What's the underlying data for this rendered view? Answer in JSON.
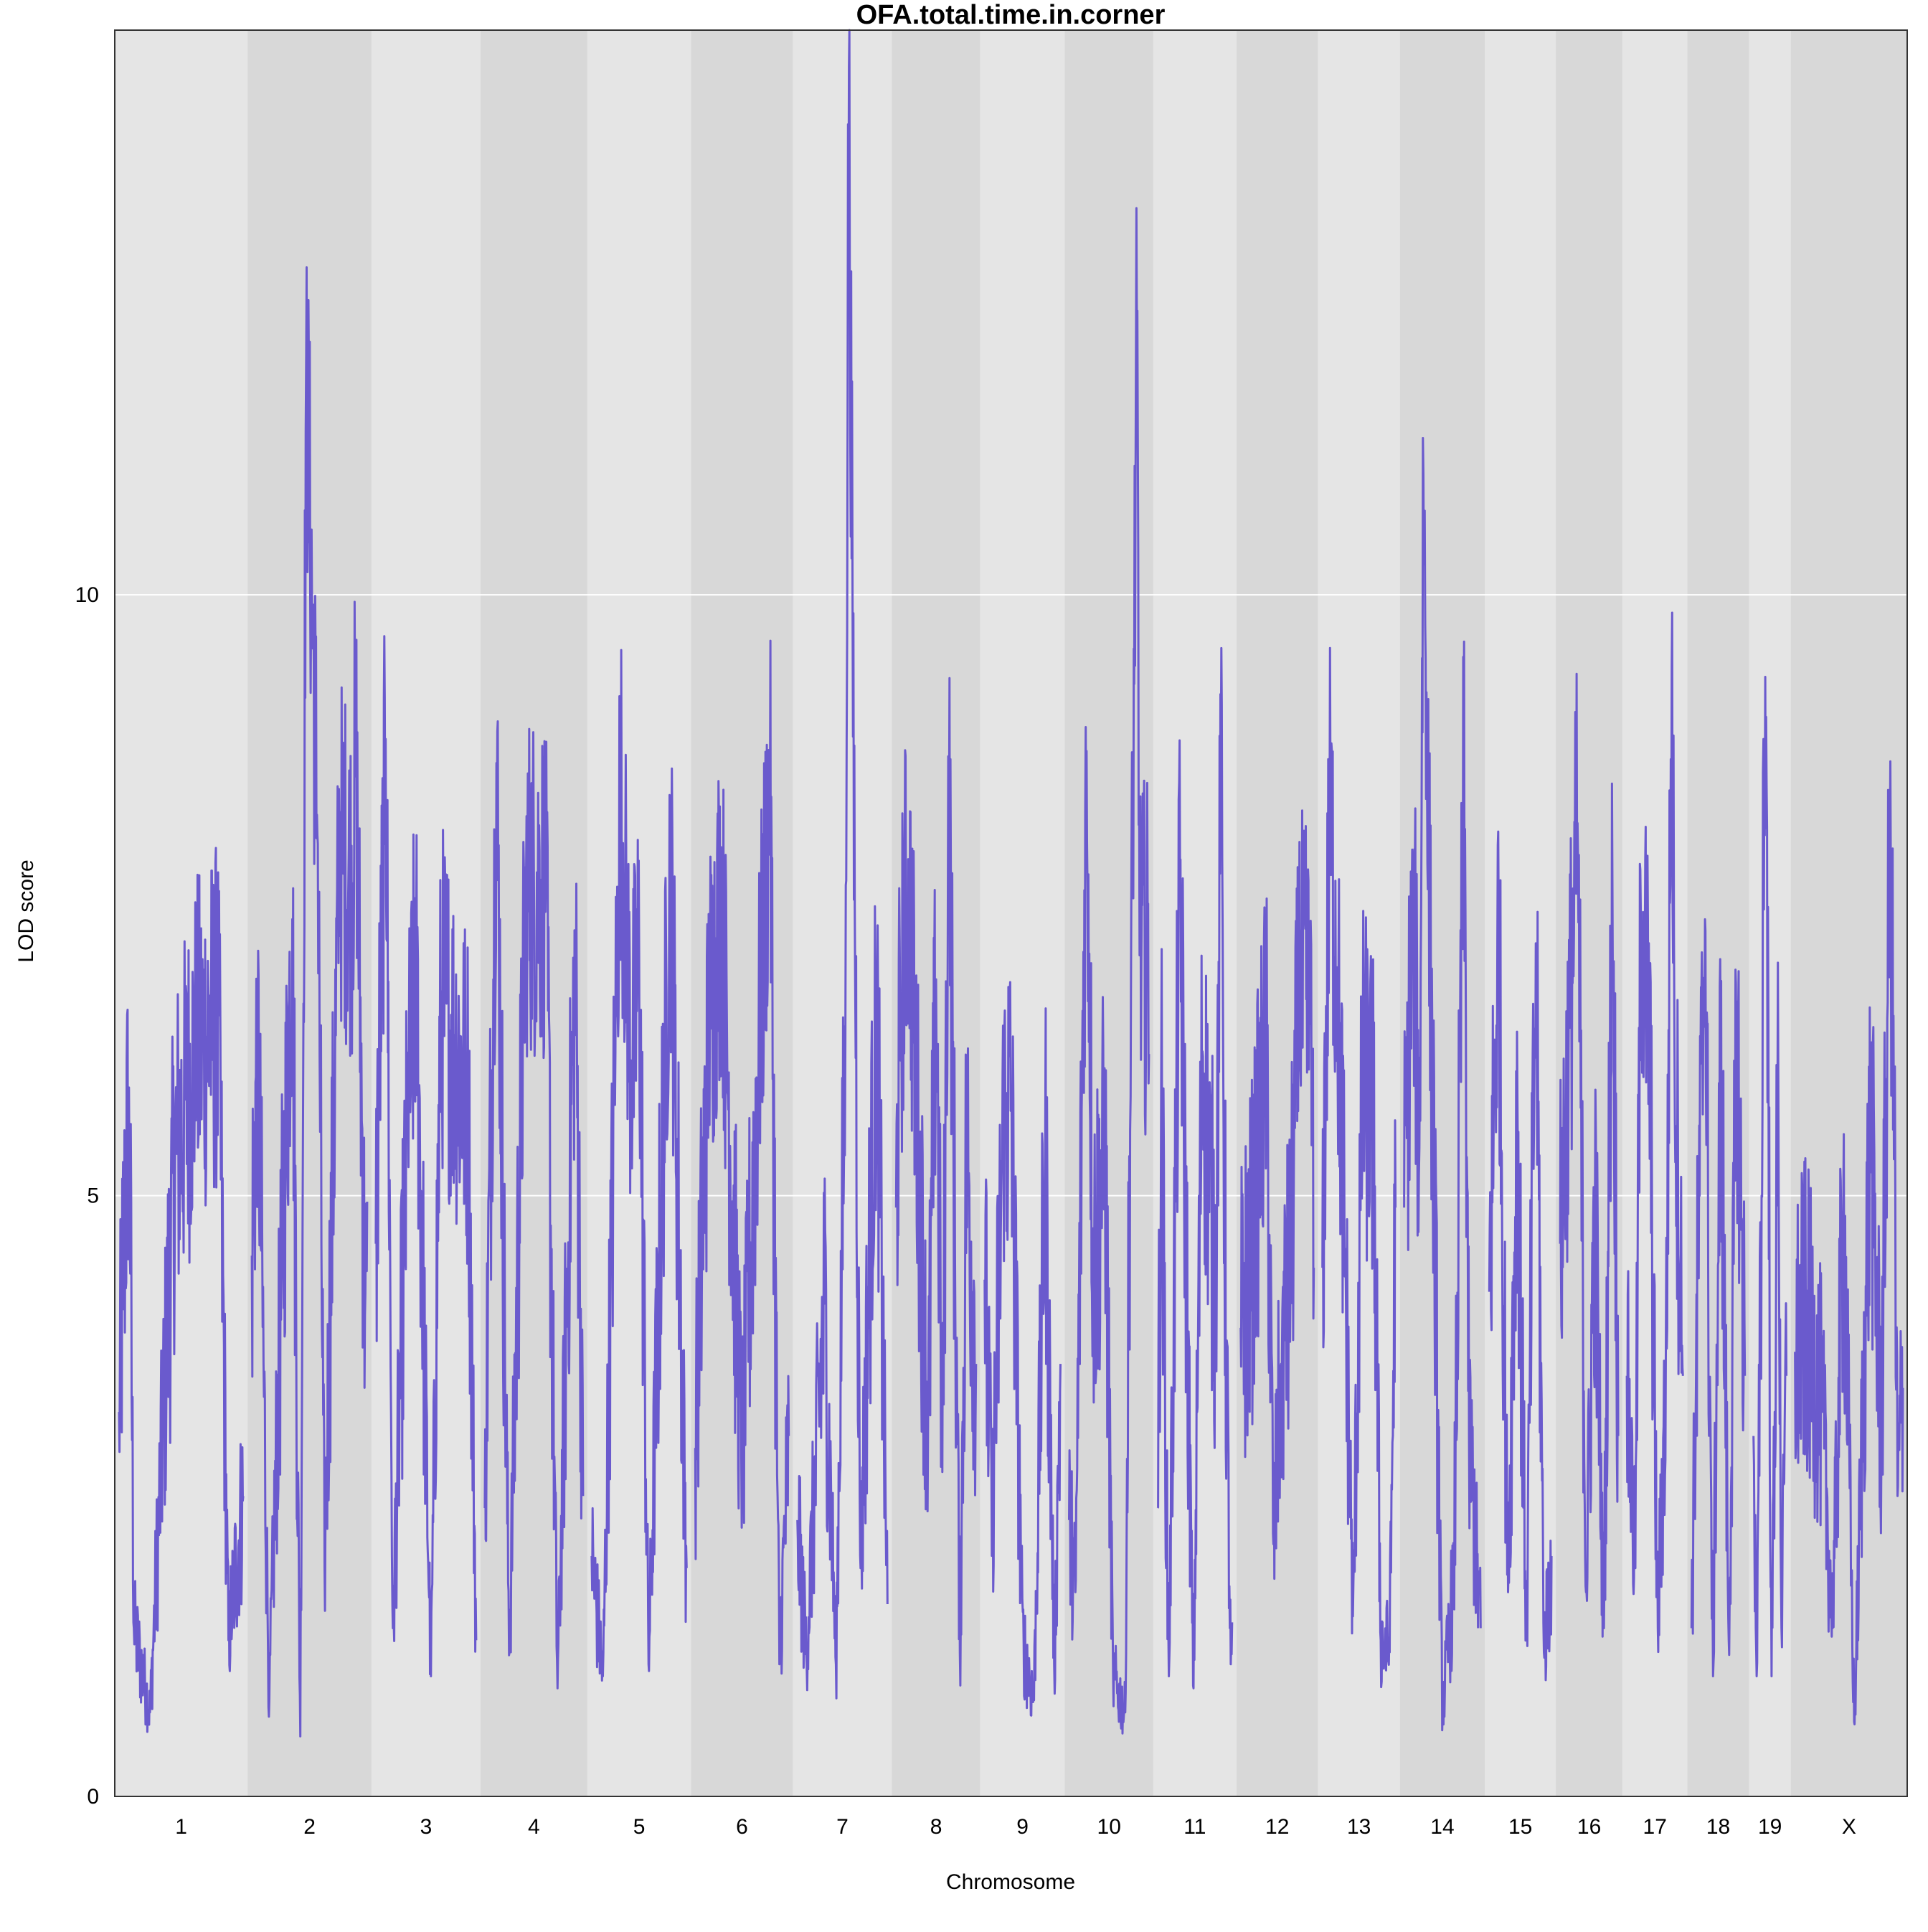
{
  "chart_data": {
    "type": "line",
    "title": "OFA.total.time.in.corner",
    "xlabel": "Chromosome",
    "ylabel": "LOD score",
    "ylim": [
      0,
      14.7
    ],
    "yticks": [
      0,
      5,
      10
    ],
    "grid": true,
    "colors": {
      "line": "#6a5acd",
      "band_light": "#e5e5e5",
      "band_dark": "#d8d8d8",
      "gridline": "#ffffff"
    },
    "chromosomes": [
      {
        "label": "1",
        "length": 195,
        "peaks": [
          [
            0.0,
            3.2
          ],
          [
            0.08,
            5.9
          ],
          [
            0.12,
            1.4
          ],
          [
            0.25,
            0.7
          ],
          [
            0.45,
            5.3
          ],
          [
            0.62,
            6.2
          ],
          [
            0.8,
            6.5
          ],
          [
            0.88,
            1.3
          ],
          [
            1.0,
            2.5
          ]
        ]
      },
      {
        "label": "2",
        "length": 182,
        "peaks": [
          [
            0.0,
            4.5
          ],
          [
            0.05,
            6.4
          ],
          [
            0.15,
            0.8
          ],
          [
            0.35,
            7.3
          ],
          [
            0.42,
            0.5
          ],
          [
            0.47,
            12.0
          ],
          [
            0.57,
            8.0
          ],
          [
            0.63,
            1.9
          ],
          [
            0.76,
            7.9
          ],
          [
            0.87,
            7.6
          ],
          [
            0.9,
            8.9
          ],
          [
            0.98,
            4.0
          ]
        ]
      },
      {
        "label": "3",
        "length": 160,
        "peaks": [
          [
            0.0,
            4.6
          ],
          [
            0.1,
            8.8
          ],
          [
            0.17,
            1.4
          ],
          [
            0.32,
            5.6
          ],
          [
            0.4,
            7.0
          ],
          [
            0.55,
            1.0
          ],
          [
            0.65,
            6.7
          ],
          [
            0.92,
            5.8
          ],
          [
            1.0,
            1.3
          ]
        ]
      },
      {
        "label": "4",
        "length": 157,
        "peaks": [
          [
            0.0,
            2.4
          ],
          [
            0.12,
            8.6
          ],
          [
            0.25,
            1.2
          ],
          [
            0.42,
            7.6
          ],
          [
            0.62,
            7.6
          ],
          [
            0.74,
            0.9
          ],
          [
            0.92,
            7.0
          ],
          [
            1.0,
            2.5
          ]
        ]
      },
      {
        "label": "5",
        "length": 152,
        "peaks": [
          [
            0.0,
            2.0
          ],
          [
            0.12,
            1.0
          ],
          [
            0.25,
            6.2
          ],
          [
            0.3,
            8.5
          ],
          [
            0.42,
            6.0
          ],
          [
            0.5,
            7.0
          ],
          [
            0.6,
            1.1
          ],
          [
            0.83,
            7.8
          ],
          [
            1.0,
            1.9
          ]
        ]
      },
      {
        "label": "6",
        "length": 150,
        "peaks": [
          [
            0.0,
            2.9
          ],
          [
            0.15,
            6.5
          ],
          [
            0.28,
            7.5
          ],
          [
            0.5,
            2.8
          ],
          [
            0.7,
            6.6
          ],
          [
            0.8,
            8.4
          ],
          [
            0.9,
            1.1
          ],
          [
            1.0,
            3.0
          ]
        ]
      },
      {
        "label": "7",
        "length": 145,
        "peaks": [
          [
            0.0,
            2.3
          ],
          [
            0.1,
            1.2
          ],
          [
            0.3,
            4.1
          ],
          [
            0.43,
            1.1
          ],
          [
            0.53,
            6.3
          ],
          [
            0.57,
            14.4
          ],
          [
            0.61,
            10.0
          ],
          [
            0.7,
            1.9
          ],
          [
            0.88,
            6.5
          ],
          [
            1.0,
            1.6
          ]
        ]
      },
      {
        "label": "8",
        "length": 130,
        "peaks": [
          [
            0.0,
            4.9
          ],
          [
            0.05,
            6.5
          ],
          [
            0.15,
            7.8
          ],
          [
            0.4,
            3.0
          ],
          [
            0.5,
            6.8
          ],
          [
            0.58,
            2.7
          ],
          [
            0.66,
            8.6
          ],
          [
            0.8,
            1.2
          ],
          [
            0.88,
            5.5
          ],
          [
            1.0,
            3.6
          ]
        ]
      },
      {
        "label": "9",
        "length": 124,
        "peaks": [
          [
            0.0,
            4.3
          ],
          [
            0.1,
            2.3
          ],
          [
            0.25,
            5.6
          ],
          [
            0.35,
            5.8
          ],
          [
            0.5,
            1.3
          ],
          [
            0.65,
            0.8
          ],
          [
            0.8,
            5.4
          ],
          [
            0.92,
            1.1
          ],
          [
            1.0,
            3.6
          ]
        ]
      },
      {
        "label": "10",
        "length": 130,
        "peaks": [
          [
            0.0,
            2.3
          ],
          [
            0.08,
            1.7
          ],
          [
            0.22,
            8.7
          ],
          [
            0.3,
            4.4
          ],
          [
            0.45,
            5.4
          ],
          [
            0.55,
            1.0
          ],
          [
            0.7,
            0.7
          ],
          [
            0.85,
            12.3
          ],
          [
            0.88,
            7.0
          ]
        ]
      },
      {
        "label": "11",
        "length": 122,
        "peaks": [
          [
            0.0,
            2.4
          ],
          [
            0.05,
            5.9
          ],
          [
            0.15,
            1.0
          ],
          [
            0.3,
            7.7
          ],
          [
            0.48,
            0.9
          ],
          [
            0.6,
            6.2
          ],
          [
            0.78,
            4.2
          ],
          [
            0.85,
            8.6
          ],
          [
            0.9,
            4.8
          ],
          [
            0.98,
            1.1
          ]
        ]
      },
      {
        "label": "12",
        "length": 120,
        "peaks": [
          [
            0.0,
            3.9
          ],
          [
            0.15,
            4.5
          ],
          [
            0.35,
            6.3
          ],
          [
            0.45,
            2.1
          ],
          [
            0.55,
            3.6
          ],
          [
            0.68,
            4.3
          ],
          [
            0.8,
            6.8
          ],
          [
            0.95,
            6.5
          ],
          [
            1.0,
            4.4
          ]
        ]
      },
      {
        "label": "13",
        "length": 120,
        "peaks": [
          [
            0.0,
            4.4
          ],
          [
            0.1,
            8.2
          ],
          [
            0.2,
            6.9
          ],
          [
            0.3,
            4.7
          ],
          [
            0.42,
            1.5
          ],
          [
            0.55,
            6.0
          ],
          [
            0.7,
            5.6
          ],
          [
            0.8,
            1.3
          ],
          [
            0.92,
            1.2
          ],
          [
            1.0,
            4.9
          ]
        ]
      },
      {
        "label": "14",
        "length": 125,
        "peaks": [
          [
            0.0,
            4.9
          ],
          [
            0.12,
            7.4
          ],
          [
            0.2,
            5.4
          ],
          [
            0.25,
            11.0
          ],
          [
            0.3,
            8.6
          ],
          [
            0.5,
            0.7
          ],
          [
            0.65,
            1.8
          ],
          [
            0.78,
            8.5
          ],
          [
            0.85,
            3.0
          ],
          [
            1.0,
            1.4
          ]
        ]
      },
      {
        "label": "15",
        "length": 104,
        "peaks": [
          [
            0.0,
            4.2
          ],
          [
            0.15,
            7.3
          ],
          [
            0.3,
            1.7
          ],
          [
            0.45,
            5.8
          ],
          [
            0.6,
            1.3
          ],
          [
            0.75,
            7.1
          ],
          [
            0.88,
            1.2
          ],
          [
            1.0,
            2.0
          ]
        ]
      },
      {
        "label": "16",
        "length": 98,
        "peaks": [
          [
            0.0,
            4.6
          ],
          [
            0.15,
            6.2
          ],
          [
            0.3,
            8.1
          ],
          [
            0.45,
            1.7
          ],
          [
            0.6,
            5.0
          ],
          [
            0.75,
            1.4
          ],
          [
            0.9,
            7.6
          ],
          [
            1.0,
            3.0
          ]
        ]
      },
      {
        "label": "17",
        "length": 95,
        "peaks": [
          [
            0.0,
            3.5
          ],
          [
            0.15,
            1.9
          ],
          [
            0.25,
            7.4
          ],
          [
            0.4,
            6.4
          ],
          [
            0.55,
            1.4
          ],
          [
            0.7,
            3.5
          ],
          [
            0.8,
            9.4
          ],
          [
            0.85,
            6.4
          ],
          [
            0.95,
            4.4
          ],
          [
            1.0,
            3.5
          ]
        ]
      },
      {
        "label": "18",
        "length": 91,
        "peaks": [
          [
            0.0,
            1.4
          ],
          [
            0.15,
            5.0
          ],
          [
            0.25,
            7.3
          ],
          [
            0.4,
            1.0
          ],
          [
            0.55,
            6.3
          ],
          [
            0.7,
            1.3
          ],
          [
            0.85,
            6.4
          ],
          [
            1.0,
            3.5
          ]
        ]
      },
      {
        "label": "19",
        "length": 61,
        "peaks": [
          [
            0.0,
            3.0
          ],
          [
            0.1,
            1.0
          ],
          [
            0.25,
            5.0
          ],
          [
            0.3,
            8.8
          ],
          [
            0.4,
            8.4
          ],
          [
            0.55,
            1.0
          ],
          [
            0.75,
            6.0
          ],
          [
            0.85,
            1.4
          ],
          [
            1.0,
            3.5
          ]
        ]
      },
      {
        "label": "X",
        "length": 171,
        "peaks": [
          [
            0.0,
            3.7
          ],
          [
            0.1,
            4.0
          ],
          [
            0.25,
            3.2
          ],
          [
            0.35,
            1.4
          ],
          [
            0.45,
            5.0
          ],
          [
            0.55,
            0.6
          ],
          [
            0.7,
            5.6
          ],
          [
            0.8,
            3.0
          ],
          [
            0.88,
            8.0
          ],
          [
            0.92,
            5.5
          ],
          [
            0.95,
            2.5
          ],
          [
            1.0,
            3.4
          ]
        ]
      }
    ]
  }
}
